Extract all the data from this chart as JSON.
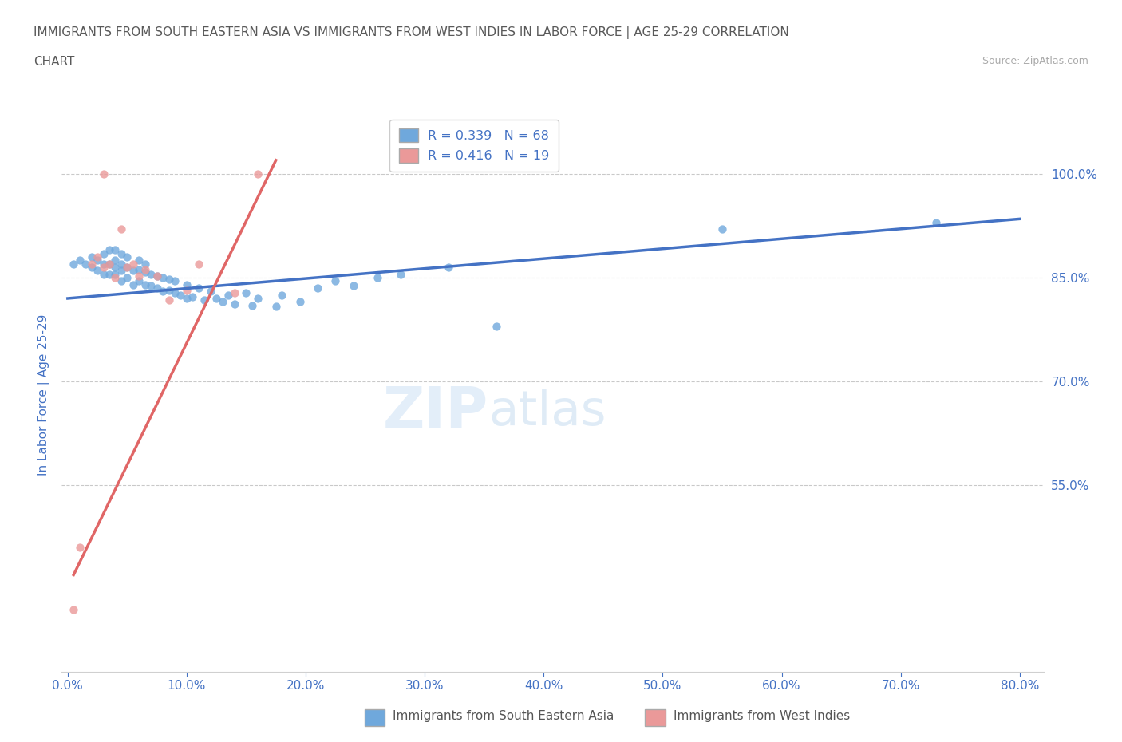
{
  "title_line1": "IMMIGRANTS FROM SOUTH EASTERN ASIA VS IMMIGRANTS FROM WEST INDIES IN LABOR FORCE | AGE 25-29 CORRELATION",
  "title_line2": "CHART",
  "source": "Source: ZipAtlas.com",
  "ylabel": "In Labor Force | Age 25-29",
  "xlim": [
    -0.005,
    0.82
  ],
  "ylim": [
    0.28,
    1.08
  ],
  "xtick_labels": [
    "0.0%",
    "10.0%",
    "20.0%",
    "30.0%",
    "40.0%",
    "50.0%",
    "60.0%",
    "70.0%",
    "80.0%"
  ],
  "xtick_values": [
    0.0,
    0.1,
    0.2,
    0.3,
    0.4,
    0.5,
    0.6,
    0.7,
    0.8
  ],
  "ytick_labels": [
    "55.0%",
    "70.0%",
    "85.0%",
    "100.0%"
  ],
  "ytick_values": [
    0.55,
    0.7,
    0.85,
    1.0
  ],
  "blue_color": "#6fa8dc",
  "pink_color": "#ea9999",
  "blue_line_color": "#4472c4",
  "pink_line_color": "#e06666",
  "legend_blue_r": "R = 0.339",
  "legend_blue_n": "N = 68",
  "legend_pink_r": "R = 0.416",
  "legend_pink_n": "N = 19",
  "title_color": "#595959",
  "axis_label_color": "#4472c4",
  "tick_color": "#4472c4",
  "watermark_zip": "ZIP",
  "watermark_atlas": "atlas",
  "grid_color": "#c9c9c9",
  "blue_scatter_x": [
    0.005,
    0.01,
    0.015,
    0.02,
    0.02,
    0.025,
    0.025,
    0.03,
    0.03,
    0.03,
    0.035,
    0.035,
    0.035,
    0.04,
    0.04,
    0.04,
    0.04,
    0.045,
    0.045,
    0.045,
    0.045,
    0.05,
    0.05,
    0.05,
    0.055,
    0.055,
    0.06,
    0.06,
    0.06,
    0.065,
    0.065,
    0.065,
    0.07,
    0.07,
    0.075,
    0.075,
    0.08,
    0.08,
    0.085,
    0.085,
    0.09,
    0.09,
    0.095,
    0.1,
    0.1,
    0.105,
    0.11,
    0.115,
    0.12,
    0.125,
    0.13,
    0.135,
    0.14,
    0.15,
    0.155,
    0.16,
    0.175,
    0.18,
    0.195,
    0.21,
    0.225,
    0.24,
    0.26,
    0.28,
    0.32,
    0.36,
    0.55,
    0.73
  ],
  "blue_scatter_y": [
    0.87,
    0.875,
    0.87,
    0.865,
    0.88,
    0.86,
    0.875,
    0.855,
    0.87,
    0.885,
    0.855,
    0.87,
    0.89,
    0.855,
    0.865,
    0.875,
    0.89,
    0.845,
    0.86,
    0.87,
    0.885,
    0.85,
    0.865,
    0.88,
    0.84,
    0.86,
    0.845,
    0.862,
    0.875,
    0.84,
    0.858,
    0.87,
    0.838,
    0.855,
    0.835,
    0.852,
    0.83,
    0.85,
    0.832,
    0.848,
    0.828,
    0.845,
    0.825,
    0.82,
    0.84,
    0.822,
    0.835,
    0.818,
    0.83,
    0.82,
    0.815,
    0.825,
    0.812,
    0.828,
    0.81,
    0.82,
    0.808,
    0.825,
    0.815,
    0.835,
    0.845,
    0.838,
    0.85,
    0.855,
    0.865,
    0.78,
    0.92,
    0.93
  ],
  "pink_scatter_x": [
    0.005,
    0.01,
    0.02,
    0.025,
    0.03,
    0.03,
    0.035,
    0.04,
    0.045,
    0.05,
    0.055,
    0.06,
    0.065,
    0.075,
    0.085,
    0.1,
    0.11,
    0.14,
    0.16
  ],
  "pink_scatter_y": [
    0.37,
    0.46,
    0.87,
    0.88,
    0.865,
    1.0,
    0.87,
    0.85,
    0.92,
    0.865,
    0.87,
    0.852,
    0.862,
    0.852,
    0.818,
    0.832,
    0.87,
    0.828,
    1.0
  ],
  "blue_trendline_x": [
    0.0,
    0.8
  ],
  "blue_trendline_y": [
    0.82,
    0.935
  ],
  "pink_trendline_x": [
    0.005,
    0.175
  ],
  "pink_trendline_y": [
    0.42,
    1.02
  ]
}
